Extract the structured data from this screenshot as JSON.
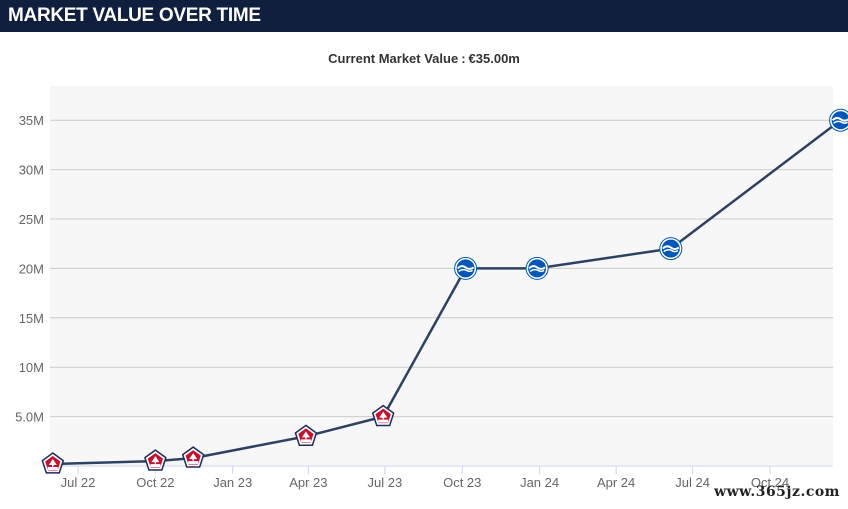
{
  "header": {
    "title": "MARKET VALUE OVER TIME"
  },
  "current": {
    "label": "Current Market Value",
    "value": "€35.00m"
  },
  "watermark": "www.365jz.com",
  "colors": {
    "header_bg": "#0f1f3d",
    "plot_bg": "#f7f7f7",
    "line": "#2d4263",
    "lille_red": "#c8102e",
    "lille_navy": "#1f2a5a",
    "brighton_blue": "#0057b8"
  },
  "chart_data": {
    "type": "line",
    "title": "",
    "xlabel": "",
    "ylabel": "",
    "ylim": [
      0,
      37000000
    ],
    "y_ticks": [
      {
        "value": 5000000,
        "label": "5.0M"
      },
      {
        "value": 10000000,
        "label": "10M"
      },
      {
        "value": 15000000,
        "label": "15M"
      },
      {
        "value": 20000000,
        "label": "20M"
      },
      {
        "value": 25000000,
        "label": "25M"
      },
      {
        "value": 30000000,
        "label": "30M"
      },
      {
        "value": 35000000,
        "label": "35M"
      }
    ],
    "x_ticks": [
      {
        "date": "2022-07-01",
        "label": "Jul 22"
      },
      {
        "date": "2022-10-01",
        "label": "Oct 22"
      },
      {
        "date": "2023-01-01",
        "label": "Jan 23"
      },
      {
        "date": "2023-04-01",
        "label": "Apr 23"
      },
      {
        "date": "2023-07-01",
        "label": "Jul 23"
      },
      {
        "date": "2023-10-01",
        "label": "Oct 23"
      },
      {
        "date": "2024-01-01",
        "label": "Jan 24"
      },
      {
        "date": "2024-04-01",
        "label": "Apr 24"
      },
      {
        "date": "2024-07-01",
        "label": "Jul 24"
      },
      {
        "date": "2024-10-01",
        "label": "Oct 24"
      }
    ],
    "grid": true,
    "series": [
      {
        "points": [
          {
            "date": "2022-06-01",
            "value": 200000,
            "club": "lille"
          },
          {
            "date": "2022-10-01",
            "value": 500000,
            "club": "lille"
          },
          {
            "date": "2022-11-15",
            "value": 800000,
            "club": "lille"
          },
          {
            "date": "2023-03-29",
            "value": 3000000,
            "club": "lille"
          },
          {
            "date": "2023-06-29",
            "value": 5000000,
            "club": "lille"
          },
          {
            "date": "2023-10-05",
            "value": 20000000,
            "club": "brighton"
          },
          {
            "date": "2023-12-29",
            "value": 20000000,
            "club": "brighton"
          },
          {
            "date": "2024-06-05",
            "value": 22000000,
            "club": "brighton"
          },
          {
            "date": "2024-12-24",
            "value": 35000000,
            "club": "brighton"
          }
        ]
      }
    ]
  }
}
